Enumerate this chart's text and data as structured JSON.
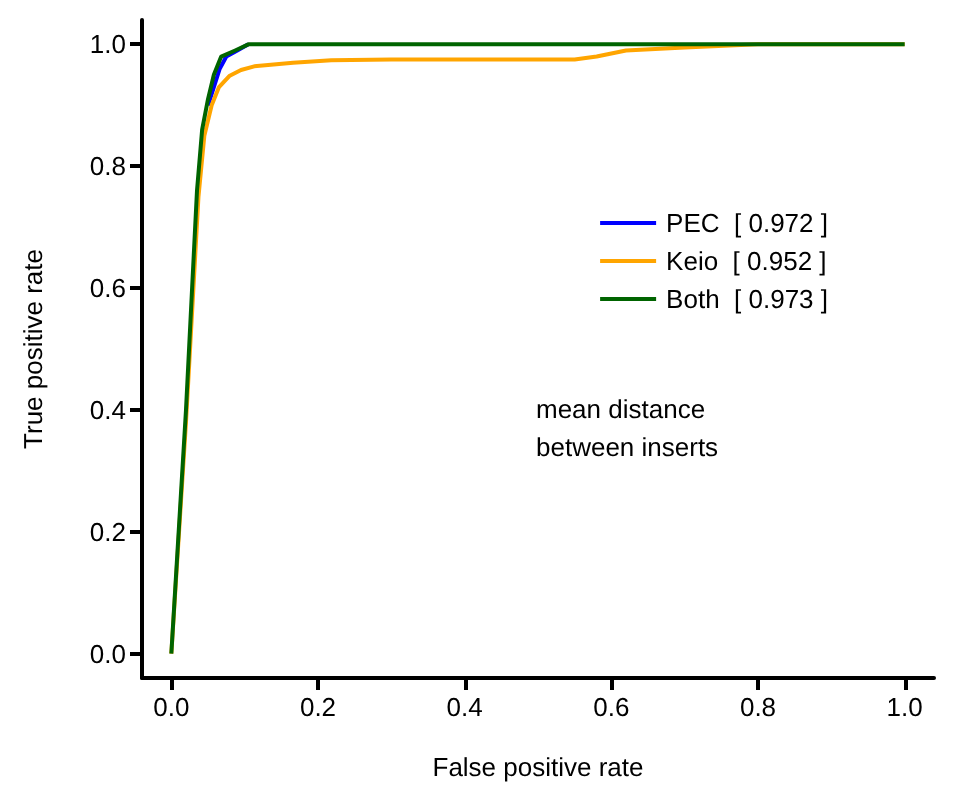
{
  "chart_data": {
    "type": "line",
    "xlabel": "False positive rate",
    "ylabel": "True positive rate",
    "xlim": [
      -0.04,
      1.04
    ],
    "ylim": [
      -0.04,
      1.04
    ],
    "xticks": [
      {
        "value": 0,
        "label": "0.0"
      },
      0.2,
      0.4,
      0.6,
      0.8,
      {
        "value": 1,
        "label": "1.0"
      }
    ],
    "yticks": [
      {
        "value": 0,
        "label": "0.0"
      },
      0.2,
      0.4,
      0.6,
      0.8,
      {
        "value": 1,
        "label": "1.0"
      }
    ],
    "grid": false,
    "legend": "right",
    "marker": "none",
    "line_style": "solid",
    "series": [
      {
        "name": "PEC  [ 0.972 ]",
        "color": "#0000ff",
        "x": [
          0.05,
          0.058,
          0.066,
          0.075,
          0.09,
          0.105
        ],
        "values": [
          0.9,
          0.93,
          0.96,
          0.98,
          0.99,
          1
        ]
      },
      {
        "name": "Keio  [ 0.952 ]",
        "color": "#ffa500",
        "x": [
          0,
          0.02,
          0.037,
          0.045,
          0.055,
          0.065,
          0.079,
          0.095,
          0.113,
          0.166,
          0.218,
          0.3,
          0.55,
          0.58,
          0.62,
          0.7,
          0.8,
          1
        ],
        "values": [
          0,
          0.38,
          0.75,
          0.85,
          0.9,
          0.93,
          0.948,
          0.958,
          0.964,
          0.97,
          0.974,
          0.975,
          0.975,
          0.98,
          0.99,
          0.995,
          1,
          1
        ]
      },
      {
        "name": "Both  [ 0.973 ]",
        "color": "#006400",
        "x": [
          0,
          0.02,
          0.035,
          0.042,
          0.05,
          0.058,
          0.068,
          0.087,
          0.105,
          0.3,
          0.6,
          1
        ],
        "values": [
          0,
          0.4,
          0.76,
          0.86,
          0.91,
          0.95,
          0.98,
          0.99,
          1,
          1,
          1,
          1
        ]
      }
    ],
    "annotations": [
      "mean distance\nbetween inserts"
    ]
  }
}
